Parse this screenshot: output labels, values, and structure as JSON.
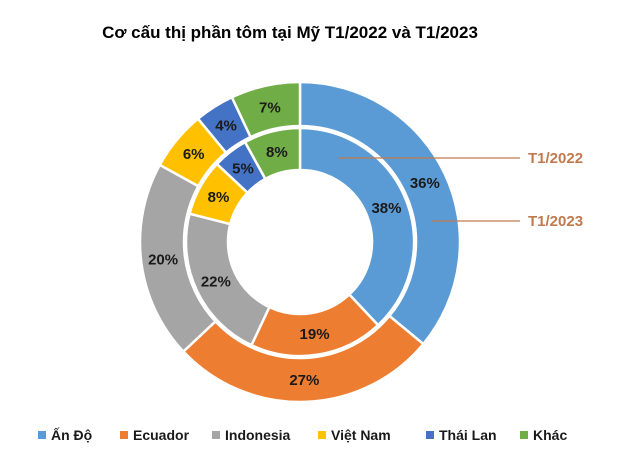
{
  "chart_data": {
    "type": "pie",
    "subtype": "doughnut",
    "title": "Cơ cấu thị phần tôm tại Mỹ T1/2022  và T1/2023",
    "categories": [
      "Ấn Độ",
      "Ecuador",
      "Indonesia",
      "Việt Nam",
      "Thái Lan",
      "Khác"
    ],
    "colors": [
      "#5b9bd5",
      "#ed7d31",
      "#a5a5a5",
      "#ffc000",
      "#4472c4",
      "#70ad47"
    ],
    "series": [
      {
        "name": "T1/2022",
        "ring": "inner",
        "values": [
          38,
          19,
          22,
          8,
          5,
          8
        ]
      },
      {
        "name": "T1/2023",
        "ring": "outer",
        "values": [
          36,
          27,
          20,
          6,
          4,
          7
        ]
      }
    ],
    "value_suffix": "%",
    "legend_position": "bottom",
    "callout_color": "#c07a4e"
  }
}
